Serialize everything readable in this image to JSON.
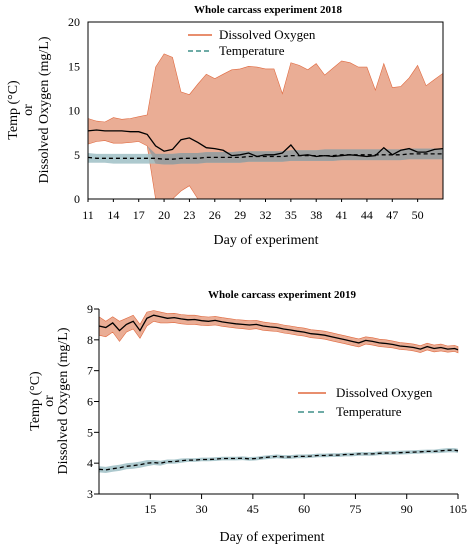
{
  "colors": {
    "do_band": "#e8a48a",
    "do_line": "#e0693f",
    "temp_band": "#9fbfc6",
    "temp_line": "#3e8f88",
    "overlap_band": "#9a9a9a",
    "mean_line": "#000000"
  },
  "chart_data": [
    {
      "type": "line",
      "title": "Whole carcass experiment 2018",
      "xlabel": "Day of experiment",
      "ylabel_lines": [
        "Temp (°C)",
        "or",
        "Dissolved Oxygen (mg/L)"
      ],
      "xlim": [
        11,
        53
      ],
      "ylim": [
        0,
        20
      ],
      "xticks": [
        11,
        14,
        17,
        20,
        23,
        26,
        29,
        32,
        35,
        38,
        41,
        44,
        47,
        50
      ],
      "yticks": [
        0,
        5,
        10,
        15,
        20
      ],
      "legend_position": "top-center",
      "x": [
        11,
        12,
        13,
        14,
        15,
        16,
        17,
        18,
        19,
        20,
        21,
        22,
        23,
        24,
        25,
        26,
        27,
        28,
        29,
        30,
        31,
        32,
        33,
        34,
        35,
        36,
        37,
        38,
        39,
        40,
        41,
        42,
        43,
        44,
        45,
        46,
        47,
        48,
        49,
        50,
        51,
        52,
        53
      ],
      "series": [
        {
          "name": "Dissolved Oxygen",
          "mean": [
            7.7,
            7.8,
            7.7,
            7.7,
            7.7,
            7.6,
            7.6,
            7.3,
            6.0,
            5.4,
            5.6,
            6.7,
            6.9,
            6.4,
            5.8,
            5.7,
            5.5,
            4.9,
            5.0,
            5.2,
            4.8,
            5.0,
            5.0,
            5.2,
            6.1,
            4.9,
            5.0,
            4.8,
            4.9,
            4.8,
            4.9,
            5.0,
            4.9,
            4.8,
            4.9,
            5.8,
            5.0,
            5.5,
            5.7,
            5.3,
            5.3,
            5.6,
            5.7
          ],
          "upper": [
            9.1,
            8.8,
            8.7,
            9.2,
            9.0,
            9.1,
            9.3,
            9.5,
            14.9,
            16.4,
            16.0,
            12.1,
            11.8,
            13.0,
            14.1,
            13.6,
            14.1,
            14.6,
            14.7,
            15.0,
            14.9,
            14.7,
            14.7,
            11.9,
            15.4,
            15.1,
            14.6,
            15.3,
            14.0,
            14.8,
            15.6,
            15.4,
            14.9,
            14.9,
            12.3,
            15.3,
            12.6,
            12.7,
            13.7,
            15.1,
            12.8,
            13.5,
            14.2
          ],
          "lower": [
            6.2,
            6.5,
            6.6,
            6.3,
            6.3,
            6.4,
            6.5,
            6.0,
            0.0,
            0.0,
            0.0,
            0.9,
            1.5,
            0.0,
            0.0,
            0.0,
            0.0,
            0.0,
            0.0,
            0.0,
            0.0,
            0.0,
            0.0,
            0.0,
            0.0,
            0.0,
            0.0,
            0.0,
            0.0,
            0.0,
            0.0,
            0.0,
            0.0,
            0.0,
            0.0,
            0.0,
            0.0,
            0.0,
            0.0,
            0.0,
            0.0,
            0.0,
            0.0
          ]
        },
        {
          "name": "Temperature",
          "mean": [
            4.7,
            4.6,
            4.6,
            4.6,
            4.6,
            4.6,
            4.6,
            4.6,
            4.6,
            4.5,
            4.5,
            4.6,
            4.6,
            4.6,
            4.7,
            4.7,
            4.7,
            4.7,
            4.7,
            4.8,
            4.8,
            4.8,
            4.8,
            4.8,
            4.9,
            4.9,
            4.9,
            4.9,
            4.9,
            4.9,
            5.0,
            5.0,
            5.0,
            5.0,
            5.0,
            5.0,
            5.0,
            5.0,
            5.1,
            5.1,
            5.1,
            5.1,
            5.1
          ],
          "upper": [
            5.2,
            5.1,
            5.1,
            5.1,
            5.1,
            5.1,
            5.1,
            5.1,
            5.1,
            5.1,
            5.1,
            5.2,
            5.2,
            5.2,
            5.3,
            5.3,
            5.3,
            5.3,
            5.4,
            5.4,
            5.4,
            5.4,
            5.4,
            5.4,
            5.5,
            5.5,
            5.5,
            5.5,
            5.6,
            5.6,
            5.6,
            5.6,
            5.6,
            5.6,
            5.6,
            5.6,
            5.6,
            5.6,
            5.7,
            5.7,
            5.7,
            5.7,
            5.7
          ],
          "lower": [
            4.1,
            4.1,
            4.1,
            4.0,
            4.0,
            4.0,
            4.0,
            4.0,
            4.0,
            3.9,
            3.9,
            4.0,
            4.0,
            4.0,
            4.1,
            4.1,
            4.1,
            4.1,
            4.1,
            4.2,
            4.2,
            4.2,
            4.2,
            4.2,
            4.3,
            4.3,
            4.3,
            4.3,
            4.3,
            4.3,
            4.4,
            4.4,
            4.4,
            4.4,
            4.4,
            4.4,
            4.4,
            4.4,
            4.5,
            4.5,
            4.5,
            4.5,
            4.5
          ]
        }
      ]
    },
    {
      "type": "line",
      "title": "Whole carcass experiment 2019",
      "xlabel": "Day of experiment",
      "ylabel_lines": [
        "Temp (°C)",
        "or",
        "Dissolved Oxygen (mg/L)"
      ],
      "xlim": [
        0,
        105
      ],
      "ylim": [
        3,
        9
      ],
      "xticks": [
        15,
        30,
        45,
        60,
        75,
        90,
        105
      ],
      "yticks": [
        3,
        4,
        5,
        6,
        7,
        8,
        9
      ],
      "legend_position": "center-right",
      "x": [
        0,
        2,
        4,
        6,
        8,
        10,
        12,
        14,
        16,
        18,
        20,
        22,
        24,
        26,
        28,
        30,
        32,
        34,
        36,
        38,
        40,
        42,
        44,
        46,
        48,
        50,
        52,
        54,
        56,
        58,
        60,
        62,
        64,
        66,
        68,
        70,
        72,
        74,
        76,
        78,
        80,
        82,
        84,
        86,
        88,
        90,
        92,
        94,
        96,
        98,
        100,
        102,
        104,
        105
      ],
      "series": [
        {
          "name": "Dissolved Oxygen",
          "mean": [
            8.45,
            8.4,
            8.55,
            8.3,
            8.5,
            8.6,
            8.3,
            8.7,
            8.8,
            8.75,
            8.7,
            8.72,
            8.68,
            8.65,
            8.66,
            8.62,
            8.6,
            8.63,
            8.58,
            8.55,
            8.52,
            8.5,
            8.48,
            8.5,
            8.45,
            8.42,
            8.4,
            8.35,
            8.32,
            8.28,
            8.25,
            8.2,
            8.18,
            8.15,
            8.1,
            8.05,
            8.0,
            7.95,
            7.9,
            7.98,
            7.95,
            7.9,
            7.88,
            7.85,
            7.8,
            7.78,
            7.75,
            7.7,
            7.78,
            7.72,
            7.75,
            7.7,
            7.72,
            7.68
          ],
          "upper": [
            8.75,
            8.6,
            8.75,
            8.6,
            8.7,
            8.8,
            8.5,
            8.9,
            8.95,
            8.9,
            8.85,
            8.86,
            8.82,
            8.8,
            8.8,
            8.76,
            8.74,
            8.76,
            8.72,
            8.69,
            8.66,
            8.64,
            8.62,
            8.63,
            8.58,
            8.55,
            8.53,
            8.48,
            8.45,
            8.41,
            8.38,
            8.33,
            8.31,
            8.28,
            8.23,
            8.18,
            8.13,
            8.08,
            8.03,
            8.1,
            8.07,
            8.02,
            8.0,
            7.96,
            7.91,
            7.89,
            7.86,
            7.81,
            7.89,
            7.83,
            7.86,
            7.8,
            7.82,
            7.78
          ],
          "lower": [
            8.15,
            8.1,
            8.25,
            7.95,
            8.25,
            8.35,
            8.05,
            8.45,
            8.6,
            8.55,
            8.55,
            8.56,
            8.52,
            8.5,
            8.5,
            8.47,
            8.46,
            8.48,
            8.44,
            8.41,
            8.38,
            8.36,
            8.34,
            8.36,
            8.31,
            8.29,
            8.27,
            8.22,
            8.19,
            8.15,
            8.12,
            8.07,
            8.05,
            8.02,
            7.97,
            7.92,
            7.87,
            7.82,
            7.77,
            7.86,
            7.83,
            7.78,
            7.76,
            7.74,
            7.69,
            7.67,
            7.64,
            7.59,
            7.67,
            7.61,
            7.64,
            7.6,
            7.62,
            7.58
          ]
        },
        {
          "name": "Temperature",
          "mean": [
            3.8,
            3.78,
            3.82,
            3.85,
            3.9,
            3.92,
            3.95,
            4.0,
            4.02,
            4.0,
            4.05,
            4.05,
            4.08,
            4.1,
            4.1,
            4.12,
            4.12,
            4.13,
            4.15,
            4.15,
            4.15,
            4.16,
            4.14,
            4.15,
            4.18,
            4.2,
            4.22,
            4.2,
            4.2,
            4.22,
            4.22,
            4.23,
            4.25,
            4.25,
            4.26,
            4.26,
            4.28,
            4.28,
            4.3,
            4.3,
            4.3,
            4.32,
            4.33,
            4.33,
            4.34,
            4.35,
            4.36,
            4.37,
            4.38,
            4.38,
            4.4,
            4.42,
            4.42,
            4.4
          ],
          "upper": [
            3.9,
            3.88,
            3.92,
            3.95,
            4.0,
            4.02,
            4.05,
            4.1,
            4.1,
            4.08,
            4.12,
            4.12,
            4.15,
            4.16,
            4.16,
            4.18,
            4.18,
            4.19,
            4.21,
            4.21,
            4.21,
            4.22,
            4.2,
            4.21,
            4.24,
            4.26,
            4.28,
            4.26,
            4.26,
            4.28,
            4.28,
            4.29,
            4.31,
            4.31,
            4.32,
            4.32,
            4.34,
            4.34,
            4.36,
            4.36,
            4.36,
            4.38,
            4.39,
            4.39,
            4.4,
            4.41,
            4.42,
            4.43,
            4.44,
            4.44,
            4.47,
            4.49,
            4.49,
            4.47
          ],
          "lower": [
            3.7,
            3.68,
            3.72,
            3.75,
            3.8,
            3.82,
            3.85,
            3.9,
            3.94,
            3.92,
            3.98,
            3.98,
            4.01,
            4.04,
            4.04,
            4.06,
            4.06,
            4.07,
            4.09,
            4.09,
            4.09,
            4.1,
            4.08,
            4.09,
            4.12,
            4.14,
            4.16,
            4.14,
            4.14,
            4.16,
            4.16,
            4.17,
            4.19,
            4.19,
            4.2,
            4.2,
            4.22,
            4.22,
            4.24,
            4.24,
            4.24,
            4.26,
            4.27,
            4.27,
            4.28,
            4.29,
            4.3,
            4.31,
            4.32,
            4.32,
            4.33,
            4.35,
            4.35,
            4.33
          ]
        }
      ]
    }
  ]
}
